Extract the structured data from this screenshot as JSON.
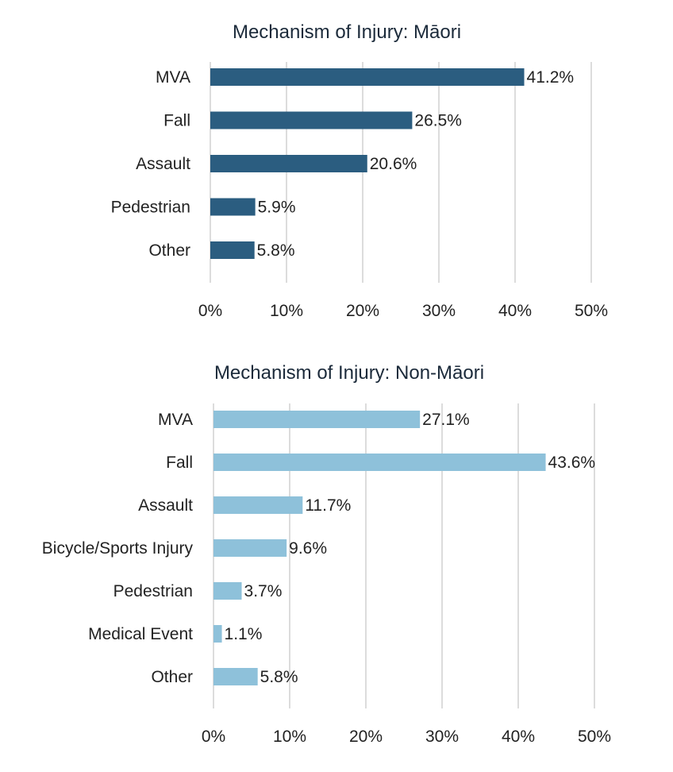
{
  "chart_data": [
    {
      "type": "bar",
      "orientation": "horizontal",
      "title": "Mechanism of Injury: Māori",
      "categories": [
        "MVA",
        "Fall",
        "Assault",
        "Pedestrian",
        "Other"
      ],
      "values": [
        41.2,
        26.5,
        20.6,
        5.9,
        5.8
      ],
      "data_labels": [
        "41.2%",
        "26.5%",
        "20.6%",
        "5.9%",
        "5.8%"
      ],
      "xticks": [
        "0%",
        "10%",
        "20%",
        "30%",
        "40%",
        "50%"
      ],
      "xlim": [
        0,
        50
      ],
      "grid": "vertical",
      "bar_color": "#2b5d80"
    },
    {
      "type": "bar",
      "orientation": "horizontal",
      "title": "Mechanism of Injury: Non-Māori",
      "categories": [
        "MVA",
        "Fall",
        "Assault",
        "Bicycle/Sports Injury",
        "Pedestrian",
        "Medical Event",
        "Other"
      ],
      "values": [
        27.1,
        43.6,
        11.7,
        9.6,
        3.7,
        1.1,
        5.8
      ],
      "data_labels": [
        "27.1%",
        "43.6%",
        "11.7%",
        "9.6%",
        "3.7%",
        "1.1%",
        "5.8%"
      ],
      "xticks": [
        "0%",
        "10%",
        "20%",
        "30%",
        "40%",
        "50%"
      ],
      "xlim": [
        0,
        50
      ],
      "grid": "vertical",
      "bar_color": "#8ec1da"
    }
  ]
}
